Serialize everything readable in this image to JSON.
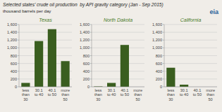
{
  "title": "Selected states’ crude oil production  by API gravity category (Jan - Sep 2015)",
  "subtitle": "thousand barrels per day",
  "annotations": [
    "eia"
  ],
  "chart_data": [
    {
      "type": "bar",
      "title": "Texas",
      "categories": [
        "less\nthan\n30",
        "30.1\nto 40",
        "40.1\nto 50",
        "more\nthan\n50"
      ],
      "values": [
        100,
        1175,
        1480,
        660
      ],
      "color": "#3a5e1f",
      "ylim": [
        0,
        1600
      ],
      "yticks": [
        0,
        200,
        400,
        600,
        800,
        {
          "value": 1000,
          "label": "1,000"
        },
        {
          "value": 1200,
          "label": "1,200"
        },
        {
          "value": 1400,
          "label": "1,400"
        },
        {
          "value": 1600,
          "label": "1,600"
        }
      ],
      "grid": true
    },
    {
      "type": "bar",
      "title": "North Dakota",
      "categories": [
        "less\nthan\n30",
        "30.1\nto 40",
        "40.1\nto 50",
        "more\nthan\n50"
      ],
      "values": [
        10,
        100,
        1075,
        0
      ],
      "color": "#3a5e1f",
      "ylim": [
        0,
        1600
      ],
      "yticks": [
        0,
        200,
        400,
        600,
        800,
        {
          "value": 1000,
          "label": "1,000"
        },
        {
          "value": 1200,
          "label": "1,200"
        },
        {
          "value": 1400,
          "label": "1,400"
        },
        {
          "value": 1600,
          "label": "1,600"
        }
      ],
      "grid": true
    },
    {
      "type": "bar",
      "title": "California",
      "categories": [
        "less\nthan\n30",
        "30.1\nto 40",
        "40.1\nto 50",
        "more\nthan\n50"
      ],
      "values": [
        490,
        55,
        0,
        0
      ],
      "color": "#3a5e1f",
      "ylim": [
        0,
        1600
      ],
      "yticks": [
        0,
        200,
        400,
        600,
        800,
        {
          "value": 1000,
          "label": "1,000"
        },
        {
          "value": 1200,
          "label": "1,200"
        },
        {
          "value": 1400,
          "label": "1,400"
        },
        {
          "value": 1600,
          "label": "1,600"
        }
      ],
      "grid": true
    }
  ]
}
